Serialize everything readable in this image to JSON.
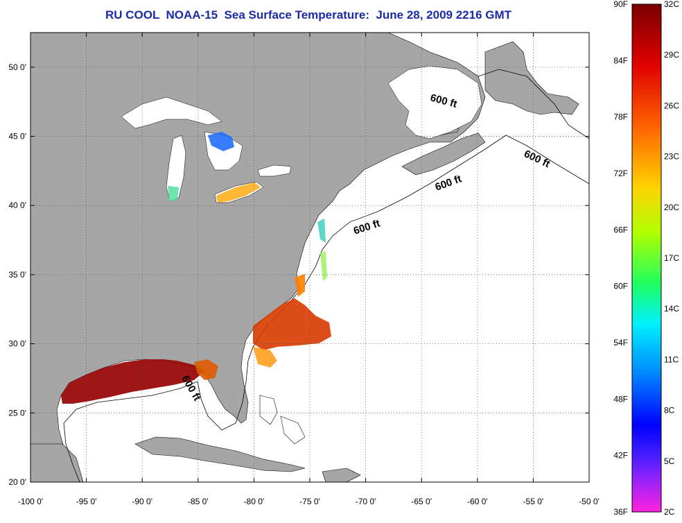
{
  "title": "RU COOL  NOAA-15  Sea Surface Temperature:  June 28, 2009 2216 GMT",
  "map": {
    "lon_labels": [
      "-100 0'",
      "-95 0'",
      "-90 0'",
      "-85 0'",
      "-80 0'",
      "-75 0'",
      "-70 0'",
      "-65 0'",
      "-60 0'",
      "-55 0'",
      "-50 0'"
    ],
    "lat_labels": [
      "50 0'",
      "45 0'",
      "40 0'",
      "35 0'",
      "30 0'",
      "25 0'",
      "20 0'"
    ],
    "lon_range": [
      -100,
      -50
    ],
    "lat_range": [
      20,
      52.5
    ],
    "depth_labels": [
      "600 ft",
      "600 ft",
      "600 ft",
      "600 ft",
      "600 ft"
    ],
    "colors": {
      "land": "#a6a6a6",
      "ocean": "#ffffff",
      "title": "#1a2aa8"
    }
  },
  "colorbar": {
    "fahrenheit": [
      "90F",
      "84F",
      "78F",
      "72F",
      "66F",
      "60F",
      "54F",
      "48F",
      "42F",
      "36F"
    ],
    "celsius": [
      "32C",
      "29C",
      "26C",
      "23C",
      "20C",
      "17C",
      "14C",
      "11C",
      "8C",
      "5C",
      "2C"
    ]
  }
}
